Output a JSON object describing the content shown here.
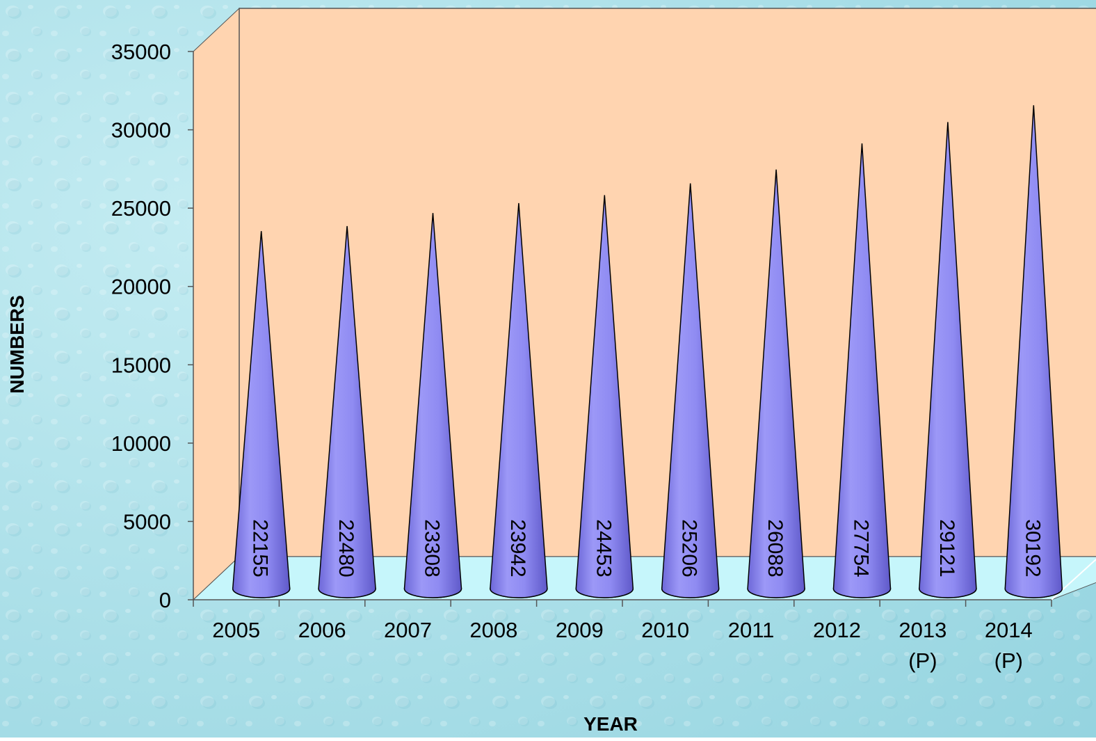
{
  "chart_data": {
    "type": "bar",
    "bar_shape": "cone",
    "categories": [
      [
        "2005"
      ],
      [
        "2006"
      ],
      [
        "2007"
      ],
      [
        "2008"
      ],
      [
        "2009"
      ],
      [
        "2010"
      ],
      [
        "2011"
      ],
      [
        "2012"
      ],
      [
        "2013",
        "(P)"
      ],
      [
        "2014",
        "(P)"
      ]
    ],
    "values": [
      22155,
      22480,
      23308,
      23942,
      24453,
      25206,
      26088,
      27754,
      29121,
      30192
    ],
    "data_labels": [
      "22155",
      "22480",
      "23308",
      "23942",
      "24453",
      "25206",
      "26088",
      "27754",
      "29121",
      "30192"
    ],
    "y_ticks": [
      "0",
      "5000",
      "10000",
      "15000",
      "20000",
      "25000",
      "30000",
      "35000"
    ],
    "ylim": [
      0,
      35000
    ],
    "xlabel": "YEAR",
    "ylabel": "NUMBERS",
    "legend": "none",
    "grid": false
  },
  "colors": {
    "background": "#a9dde6",
    "back_wall": "#ffd4b0",
    "floor": "#c6f6fb",
    "cone_fill": "#8f8bf2",
    "cone_shadow": "#6c66d6",
    "outline": "#000000"
  }
}
